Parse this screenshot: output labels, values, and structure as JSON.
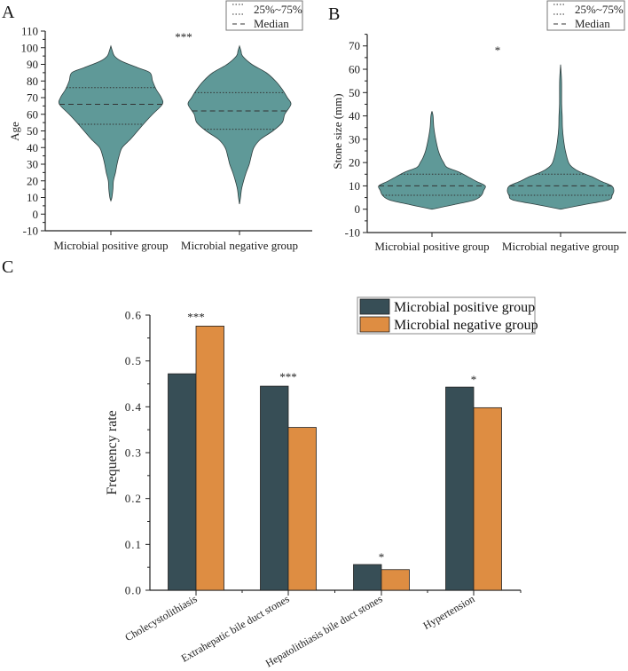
{
  "colors": {
    "violin": "#5f9998",
    "positive": "#374e56",
    "negative": "#de8d42"
  },
  "chart_data": [
    {
      "panel": "A",
      "type": "violin",
      "ylabel": "Age",
      "ylim": [
        -10,
        110
      ],
      "yticks": [
        -10,
        0,
        10,
        20,
        30,
        40,
        50,
        60,
        70,
        80,
        90,
        100,
        110
      ],
      "categories": [
        "Microbial positive group",
        "Microbial negative group"
      ],
      "significance": "***",
      "legend": {
        "quartile": "25%~75%",
        "median": "Median"
      },
      "groups": [
        {
          "name": "Microbial positive group",
          "q1": 54,
          "median": 66,
          "q3": 76,
          "density": [
            [
              8,
              0
            ],
            [
              10,
              0.02
            ],
            [
              15,
              0.04
            ],
            [
              20,
              0.05
            ],
            [
              25,
              0.09
            ],
            [
              30,
              0.12
            ],
            [
              35,
              0.16
            ],
            [
              40,
              0.22
            ],
            [
              45,
              0.38
            ],
            [
              50,
              0.52
            ],
            [
              55,
              0.66
            ],
            [
              60,
              0.81
            ],
            [
              66,
              1
            ],
            [
              70,
              0.98
            ],
            [
              75,
              0.88
            ],
            [
              80,
              0.81
            ],
            [
              85,
              0.76
            ],
            [
              88,
              0.52
            ],
            [
              92,
              0.2
            ],
            [
              95,
              0.07
            ],
            [
              98,
              0.03
            ],
            [
              101,
              0
            ]
          ]
        },
        {
          "name": "Microbial negative group",
          "q1": 51,
          "median": 62,
          "q3": 73,
          "density": [
            [
              6,
              0
            ],
            [
              10,
              0.02
            ],
            [
              15,
              0.04
            ],
            [
              20,
              0.08
            ],
            [
              25,
              0.13
            ],
            [
              30,
              0.19
            ],
            [
              35,
              0.23
            ],
            [
              40,
              0.28
            ],
            [
              45,
              0.41
            ],
            [
              50,
              0.65
            ],
            [
              55,
              0.83
            ],
            [
              60,
              0.88
            ],
            [
              66,
              1
            ],
            [
              70,
              0.93
            ],
            [
              75,
              0.83
            ],
            [
              80,
              0.7
            ],
            [
              85,
              0.52
            ],
            [
              90,
              0.24
            ],
            [
              95,
              0.06
            ],
            [
              98,
              0.03
            ],
            [
              101,
              0
            ]
          ]
        }
      ]
    },
    {
      "panel": "B",
      "type": "violin",
      "ylabel": "Stone size (mm)",
      "ylim": [
        -10,
        75
      ],
      "yticks": [
        -10,
        0,
        10,
        20,
        30,
        40,
        50,
        60,
        70
      ],
      "categories": [
        "Microbial positive group",
        "Microbial negative group"
      ],
      "significance": "*",
      "legend": {
        "quartile": "25%~75%",
        "median": "Median"
      },
      "groups": [
        {
          "name": "Microbial positive group",
          "q1": 6,
          "median": 10,
          "q3": 15,
          "density": [
            [
              0,
              0
            ],
            [
              2,
              0.42
            ],
            [
              4,
              0.8
            ],
            [
              6,
              0.93
            ],
            [
              8,
              0.97
            ],
            [
              10,
              1
            ],
            [
              12,
              0.83
            ],
            [
              14,
              0.67
            ],
            [
              16,
              0.5
            ],
            [
              18,
              0.28
            ],
            [
              20,
              0.22
            ],
            [
              22,
              0.17
            ],
            [
              25,
              0.12
            ],
            [
              30,
              0.07
            ],
            [
              35,
              0.035
            ],
            [
              40,
              0.02
            ],
            [
              42,
              0
            ]
          ]
        },
        {
          "name": "Microbial negative group",
          "q1": 6,
          "median": 10,
          "q3": 15,
          "density": [
            [
              0,
              0
            ],
            [
              2,
              0.45
            ],
            [
              4,
              0.9
            ],
            [
              6,
              0.97
            ],
            [
              8,
              1
            ],
            [
              10,
              0.96
            ],
            [
              12,
              0.76
            ],
            [
              14,
              0.58
            ],
            [
              16,
              0.36
            ],
            [
              18,
              0.22
            ],
            [
              20,
              0.15
            ],
            [
              25,
              0.09
            ],
            [
              30,
              0.055
            ],
            [
              35,
              0.035
            ],
            [
              40,
              0.03
            ],
            [
              45,
              0.02
            ],
            [
              55,
              0.018
            ],
            [
              62,
              0
            ]
          ]
        }
      ]
    },
    {
      "panel": "C",
      "type": "bar",
      "ylabel": "Frequency rate",
      "ylim": [
        0,
        0.6
      ],
      "yticks": [
        "0.0",
        "0.1",
        "0.2",
        "0.3",
        "0.4",
        "0.5",
        "0.6"
      ],
      "categories": [
        "Cholecystolithiasis",
        "Extrahepatic bile duct stones",
        "Hepatolithiasis bile duct stones",
        "Hypertension"
      ],
      "significance": [
        "***",
        "***",
        "*",
        "*"
      ],
      "legend_position": "top-right",
      "series": [
        {
          "name": "Microbial positive group",
          "values": [
            0.472,
            0.445,
            0.056,
            0.443
          ]
        },
        {
          "name": "Microbial negative group",
          "values": [
            0.576,
            0.355,
            0.045,
            0.398
          ]
        }
      ]
    }
  ]
}
